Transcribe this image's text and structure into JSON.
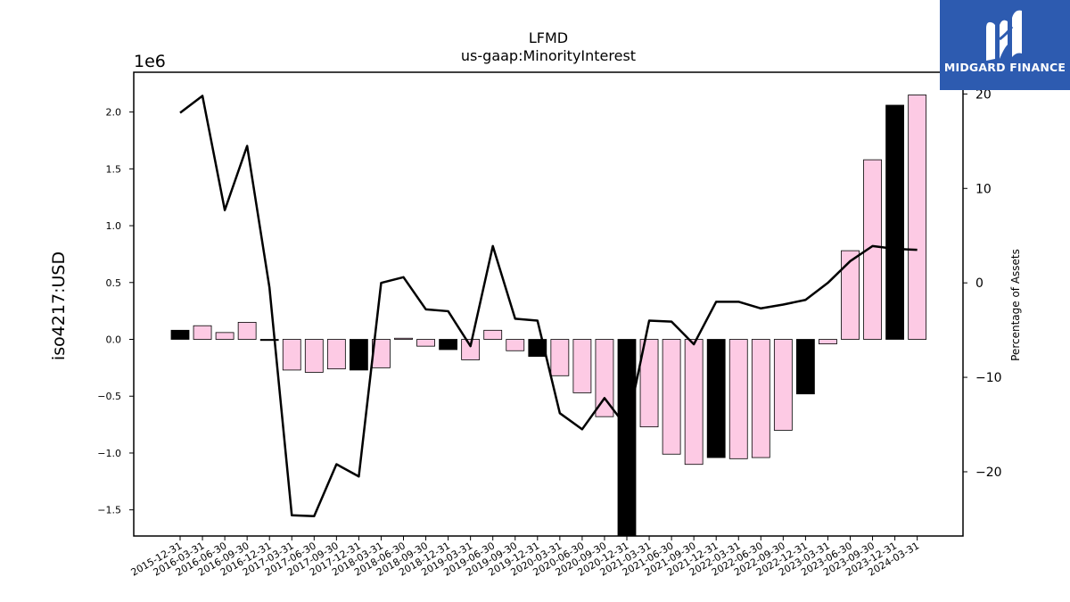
{
  "logo": {
    "text": "MIDGARD FINANCE",
    "icon": "midgard-m-logo-icon"
  },
  "chart_data": {
    "type": "bar",
    "title": "LFMD",
    "subtitle": "us-gaap:MinorityInterest",
    "ylabel": "iso4217:USD",
    "y2label": "Percentage of Assets",
    "yscale_label": "1e6",
    "ylim": [
      -1.73,
      2.35
    ],
    "y2lim": [
      -26.8,
      22.3
    ],
    "yticks": [
      -1.5,
      -1.0,
      -0.5,
      0.0,
      0.5,
      1.0,
      1.5,
      2.0
    ],
    "ytick_labels": [
      "−1.5",
      "−1.0",
      "−0.5",
      "0.0",
      "0.5",
      "1.0",
      "1.5",
      "2.0"
    ],
    "y2ticks": [
      -20,
      -10,
      0,
      10,
      20
    ],
    "y2tick_labels": [
      "−20",
      "−10",
      "0",
      "10",
      "20"
    ],
    "grid": false,
    "colors": {
      "q4": "#000000",
      "other": "#fdcae4",
      "line": "#000000"
    },
    "categories": [
      "2015-12-31",
      "2016-03-31",
      "2016-06-30",
      "2016-09-30",
      "2016-12-31",
      "2017-03-31",
      "2017-06-30",
      "2017-09-30",
      "2017-12-31",
      "2018-03-31",
      "2018-06-30",
      "2018-09-30",
      "2018-12-31",
      "2019-03-31",
      "2019-06-30",
      "2019-09-30",
      "2019-12-31",
      "2020-03-31",
      "2020-06-30",
      "2020-09-30",
      "2020-12-31",
      "2021-03-31",
      "2021-06-30",
      "2021-09-30",
      "2021-12-31",
      "2022-03-31",
      "2022-06-30",
      "2022-09-30",
      "2022-12-31",
      "2023-03-31",
      "2023-06-30",
      "2023-09-30",
      "2023-12-31",
      "2024-03-31"
    ],
    "series": [
      {
        "type": "bar",
        "axis": "left",
        "values": [
          0.08,
          0.12,
          0.06,
          0.15,
          -0.01,
          -0.27,
          -0.29,
          -0.26,
          -0.27,
          -0.25,
          0.01,
          -0.06,
          -0.09,
          -0.18,
          0.08,
          -0.1,
          -0.15,
          -0.32,
          -0.47,
          -0.68,
          -1.73,
          -0.77,
          -1.01,
          -1.1,
          -1.04,
          -1.05,
          -1.04,
          -0.8,
          -0.48,
          -0.04,
          0.78,
          1.58,
          2.06,
          2.15
        ]
      },
      {
        "type": "line",
        "axis": "right",
        "values": [
          18,
          19.8,
          7.7,
          14.5,
          -0.5,
          -24.6,
          -24.7,
          -19.2,
          -20.5,
          0,
          0.6,
          -2.8,
          -3,
          -6.7,
          3.9,
          -3.8,
          -4,
          -13.8,
          -15.5,
          -12.2,
          -15.3,
          -4,
          -4.1,
          -6.5,
          -2,
          -2,
          -2.7,
          -2.3,
          -1.8,
          0,
          2.3,
          3.9,
          3.6,
          3.5
        ]
      }
    ]
  }
}
